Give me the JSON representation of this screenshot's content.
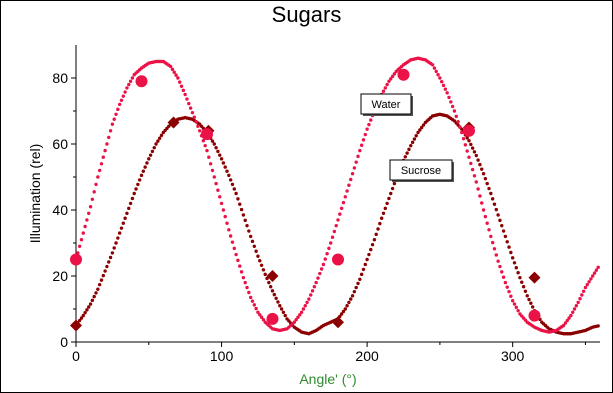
{
  "chart_data": {
    "type": "line",
    "title": "Sugars",
    "xlabel": "Angle' (°)",
    "ylabel": "Illumination (rel)",
    "xlim": [
      0,
      360
    ],
    "ylim": [
      0,
      90
    ],
    "xticks": [
      0,
      100,
      200,
      300
    ],
    "yticks": [
      0,
      20,
      40,
      60,
      80
    ],
    "grid": false,
    "colors": {
      "water": "#ea1246",
      "sucrose": "#8b0000",
      "xlabel": "#2e8b2e"
    },
    "series": [
      {
        "name": "Water",
        "color": "#ea1246",
        "marker": "circle",
        "x": [
          0,
          5,
          10,
          15,
          20,
          25,
          30,
          35,
          40,
          45,
          50,
          55,
          60,
          65,
          70,
          75,
          80,
          85,
          90,
          95,
          100,
          105,
          110,
          115,
          120,
          125,
          130,
          135,
          140,
          145,
          150,
          155,
          160,
          165,
          170,
          175,
          180,
          185,
          190,
          195,
          200,
          205,
          210,
          215,
          220,
          225,
          230,
          235,
          240,
          245,
          250,
          255,
          260,
          265,
          270,
          275,
          280,
          285,
          290,
          295,
          300,
          305,
          310,
          315,
          320,
          325,
          330,
          335,
          340,
          345,
          350,
          355,
          360
        ],
        "y": [
          25,
          33,
          41,
          50,
          58,
          66,
          72,
          77,
          81,
          83,
          84.5,
          85,
          85,
          83.5,
          80,
          75,
          69.5,
          64,
          58,
          50,
          42,
          34,
          26.5,
          19.5,
          13.5,
          9,
          6,
          4,
          3.5,
          4,
          6,
          9,
          13,
          18,
          23.5,
          30,
          37,
          44,
          51,
          58,
          64.5,
          70,
          75,
          79,
          82,
          84,
          85.5,
          86,
          85.5,
          84,
          80,
          75.5,
          70,
          63.5,
          56,
          48.5,
          40,
          32,
          24.5,
          18,
          12.5,
          8.5,
          6,
          4.5,
          3.5,
          3,
          3.5,
          5,
          8,
          12,
          16.5,
          20,
          23.5
        ],
        "marker_x": [
          0,
          45,
          90,
          135,
          180,
          225,
          270,
          315
        ],
        "marker_y": [
          25,
          79,
          63,
          7,
          25,
          81,
          64,
          8
        ]
      },
      {
        "name": "Sucrose",
        "color": "#8b0000",
        "marker": "diamond",
        "x": [
          0,
          5,
          10,
          15,
          20,
          25,
          30,
          35,
          40,
          45,
          50,
          55,
          60,
          65,
          70,
          75,
          80,
          85,
          90,
          95,
          100,
          105,
          110,
          115,
          120,
          125,
          130,
          135,
          140,
          145,
          150,
          155,
          160,
          165,
          170,
          175,
          180,
          185,
          190,
          195,
          200,
          205,
          210,
          215,
          220,
          225,
          230,
          235,
          240,
          245,
          250,
          255,
          260,
          265,
          270,
          275,
          280,
          285,
          290,
          295,
          300,
          305,
          310,
          315,
          320,
          325,
          330,
          335,
          340,
          345,
          350,
          355,
          360
        ],
        "y": [
          5,
          8,
          11.5,
          16,
          21.5,
          27,
          33,
          39,
          45,
          50.5,
          55.5,
          60,
          63.5,
          66,
          67.5,
          68,
          67.5,
          66,
          63.5,
          60,
          55.5,
          50.5,
          45,
          38.5,
          32,
          26,
          20.5,
          15.5,
          11,
          7,
          4.5,
          3,
          2.5,
          3.5,
          5,
          6,
          7,
          10,
          14,
          19,
          25,
          31,
          37.5,
          43.5,
          49.5,
          55,
          59.5,
          63.5,
          66.5,
          68.5,
          69,
          68.5,
          67,
          64.5,
          61,
          56.5,
          51,
          45,
          38.5,
          32,
          25.5,
          19.5,
          14,
          9.5,
          6,
          4,
          3,
          2.5,
          2.5,
          3,
          3.5,
          4.5,
          5
        ]
      }
    ],
    "sucrose_marker_x": [
      0,
      67,
      91,
      135,
      180,
      270,
      315
    ],
    "sucrose_marker_y": [
      5,
      66.5,
      64,
      20,
      6,
      65,
      19.5
    ],
    "annotations": [
      "Water",
      "Sucrose"
    ]
  }
}
